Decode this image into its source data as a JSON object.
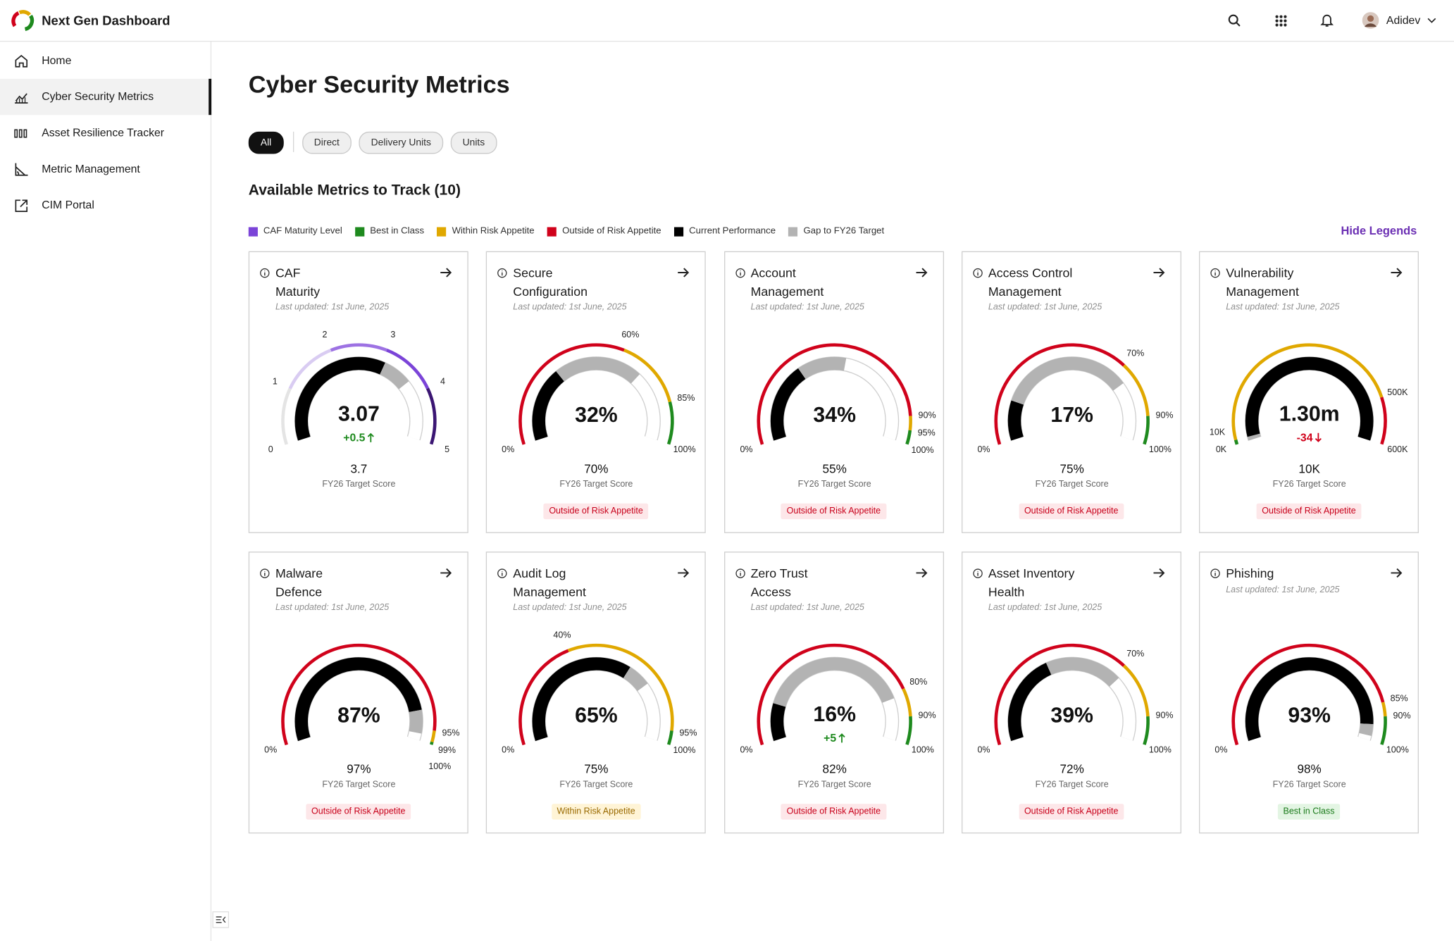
{
  "header": {
    "title": "Next Gen Dashboard",
    "user": "Adidev"
  },
  "sidebar": {
    "items": [
      "Home",
      "Cyber Security Metrics",
      "Asset Resilience Tracker",
      "Metric Management",
      "CIM Portal"
    ],
    "active": 1
  },
  "page": {
    "title": "Cyber Security Metrics",
    "filters": [
      "All",
      "Direct",
      "Delivery Units",
      "Units"
    ],
    "active_filter": 0,
    "section_title": "Available Metrics to Track (10)",
    "hide_legends": "Hide Legends"
  },
  "legend": [
    {
      "name": "CAF Maturity Level",
      "color": "#7b44d8"
    },
    {
      "name": "Best in Class",
      "color": "#1e8a1e"
    },
    {
      "name": "Within Risk Appetite",
      "color": "#e0a800"
    },
    {
      "name": "Outside of Risk Appetite",
      "color": "#d0021b"
    },
    {
      "name": "Current Performance",
      "color": "#000000"
    },
    {
      "name": "Gap to FY26 Target",
      "color": "#b3b3b3"
    }
  ],
  "cards": [
    {
      "title_lines": [
        "CAF",
        "Maturity"
      ],
      "updated": "Last updated: 1st June, 2025",
      "gauge": {
        "type": "gauge",
        "ylim": [
          0,
          5
        ],
        "yticks": [
          0,
          1,
          2,
          3,
          4,
          5
        ],
        "band_colors": [
          "#e4e4e4",
          "#d9ccf2",
          "#9d72e3",
          "#7b44d8",
          "#3b1673"
        ],
        "value": 3.07,
        "change": {
          "value": 0.5,
          "label": "+0.5"
        },
        "target": 3.7
      },
      "target_caption": "FY26 Target Score"
    },
    {
      "title_lines": [
        "Secure",
        "Configuration"
      ],
      "updated": "Last updated: 1st June, 2025",
      "gauge": {
        "type": "gauge",
        "ylim": [
          0,
          100
        ],
        "yticks": [
          {
            "value": 0,
            "label": "0%"
          },
          {
            "value": 60,
            "label": "60%"
          },
          {
            "value": 85,
            "label": "85%"
          },
          {
            "value": 100,
            "label": "100%"
          }
        ],
        "band_colors": [
          "#d0021b",
          "#e0a800",
          "#1e8a1e"
        ],
        "value": 32,
        "value_label": "32%",
        "target": 70,
        "target_label": "70%"
      },
      "target_caption": "FY26 Target Score",
      "status": {
        "text": "Outside of Risk Appetite",
        "color": "#c8001a",
        "bg": "#fde7e9"
      }
    },
    {
      "title_lines": [
        "Account",
        "Management"
      ],
      "updated": "Last updated: 1st June, 2025",
      "gauge": {
        "type": "gauge",
        "ylim": [
          0,
          100
        ],
        "yticks": [
          {
            "value": 0,
            "label": "0%"
          },
          {
            "value": 90,
            "label": "90%"
          },
          {
            "value": 95,
            "label": "95%"
          },
          {
            "value": 100,
            "label": "100%"
          }
        ],
        "band_colors": [
          "#d0021b",
          "#e0a800",
          "#1e8a1e"
        ],
        "value": 34,
        "value_label": "34%",
        "target": 55,
        "target_label": "55%"
      },
      "target_caption": "FY26 Target Score",
      "status": {
        "text": "Outside of Risk Appetite",
        "color": "#c8001a",
        "bg": "#fde7e9"
      }
    },
    {
      "title_lines": [
        "Access Control",
        "Management"
      ],
      "updated": "Last updated: 1st June, 2025",
      "gauge": {
        "type": "gauge",
        "ylim": [
          0,
          100
        ],
        "yticks": [
          {
            "value": 0,
            "label": "0%"
          },
          {
            "value": 70,
            "label": "70%"
          },
          {
            "value": 90,
            "label": "90%"
          },
          {
            "value": 100,
            "label": "100%"
          }
        ],
        "band_colors": [
          "#d0021b",
          "#e0a800",
          "#1e8a1e"
        ],
        "value": 17,
        "value_label": "17%",
        "target": 75,
        "target_label": "75%"
      },
      "target_caption": "FY26 Target Score",
      "status": {
        "text": "Outside of Risk Appetite",
        "color": "#c8001a",
        "bg": "#fde7e9"
      }
    },
    {
      "title_lines": [
        "Vulnerability",
        "Management"
      ],
      "updated": "Last updated: 1st June, 2025",
      "gauge": {
        "type": "gauge",
        "lower_is_better": true,
        "ylim": [
          0,
          600000
        ],
        "yticks": [
          {
            "value": 0,
            "label": "0K"
          },
          {
            "value": 10000,
            "label": "10K"
          },
          {
            "value": 500000,
            "label": "500K"
          },
          {
            "value": 600000,
            "label": "600K"
          }
        ],
        "band_colors": [
          "#1e8a1e",
          "#e0a800",
          "#d0021b"
        ],
        "value": 1300000,
        "value_label": "1.30m",
        "change": -34,
        "target": 10000,
        "target_label": "10K"
      },
      "target_caption": "FY26 Target Score",
      "status": {
        "text": "Outside of Risk Appetite",
        "color": "#c8001a",
        "bg": "#fde7e9"
      }
    },
    {
      "title_lines": [
        "Malware",
        "Defence"
      ],
      "updated": "Last updated: 1st June, 2025",
      "gauge": {
        "type": "gauge",
        "ylim": [
          0,
          100
        ],
        "yticks": [
          {
            "value": 0,
            "label": "0%"
          },
          {
            "value": 95,
            "label": "95%"
          },
          {
            "value": 99,
            "label": "99%"
          },
          {
            "value": 100,
            "label": "100%"
          }
        ],
        "band_colors": [
          "#d0021b",
          "#e0a800",
          "#1e8a1e"
        ],
        "value": 87,
        "value_label": "87%",
        "target": 97,
        "target_label": "97%"
      },
      "target_caption": "FY26 Target Score",
      "status": {
        "text": "Outside of Risk Appetite",
        "color": "#c8001a",
        "bg": "#fde7e9"
      }
    },
    {
      "title_lines": [
        "Audit Log",
        "Management"
      ],
      "updated": "Last updated: 1st June, 2025",
      "gauge": {
        "type": "gauge",
        "ylim": [
          0,
          100
        ],
        "yticks": [
          {
            "value": 0,
            "label": "0%"
          },
          {
            "value": 40,
            "label": "40%"
          },
          {
            "value": 95,
            "label": "95%"
          },
          {
            "value": 100,
            "label": "100%"
          }
        ],
        "band_colors": [
          "#d0021b",
          "#e0a800",
          "#1e8a1e"
        ],
        "value": 65,
        "value_label": "65%",
        "target": 75,
        "target_label": "75%"
      },
      "target_caption": "FY26 Target Score",
      "status": {
        "text": "Within Risk Appetite",
        "color": "#9a6a00",
        "bg": "#fff4d6"
      }
    },
    {
      "title_lines": [
        "Zero Trust",
        "Access"
      ],
      "updated": "Last updated: 1st June, 2025",
      "gauge": {
        "type": "gauge",
        "ylim": [
          0,
          100
        ],
        "yticks": [
          {
            "value": 0,
            "label": "0%"
          },
          {
            "value": 80,
            "label": "80%"
          },
          {
            "value": 90,
            "label": "90%"
          },
          {
            "value": 100,
            "label": "100%"
          }
        ],
        "band_colors": [
          "#d0021b",
          "#e0a800",
          "#1e8a1e"
        ],
        "value": 16,
        "value_label": "16%",
        "change": {
          "value": 5,
          "label": "+5"
        },
        "target": 82,
        "target_label": "82%"
      },
      "target_caption": "FY26 Target Score",
      "status": {
        "text": "Outside of Risk Appetite",
        "color": "#c8001a",
        "bg": "#fde7e9"
      }
    },
    {
      "title_lines": [
        "Asset Inventory",
        "Health"
      ],
      "updated": "Last updated: 1st June, 2025",
      "gauge": {
        "type": "gauge",
        "ylim": [
          0,
          100
        ],
        "yticks": [
          {
            "value": 0,
            "label": "0%"
          },
          {
            "value": 70,
            "label": "70%"
          },
          {
            "value": 90,
            "label": "90%"
          },
          {
            "value": 100,
            "label": "100%"
          }
        ],
        "band_colors": [
          "#d0021b",
          "#e0a800",
          "#1e8a1e"
        ],
        "value": 39,
        "value_label": "39%",
        "target": 72,
        "target_label": "72%"
      },
      "target_caption": "FY26 Target Score",
      "status": {
        "text": "Outside of Risk Appetite",
        "color": "#c8001a",
        "bg": "#fde7e9"
      }
    },
    {
      "title_lines": [
        "Phishing"
      ],
      "updated": "Last updated: 1st June, 2025",
      "gauge": {
        "type": "gauge",
        "ylim": [
          0,
          100
        ],
        "yticks": [
          {
            "value": 0,
            "label": "0%"
          },
          {
            "value": 85,
            "label": "85%"
          },
          {
            "value": 90,
            "label": "90%"
          },
          {
            "value": 100,
            "label": "100%"
          }
        ],
        "band_colors": [
          "#d0021b",
          "#e0a800",
          "#1e8a1e"
        ],
        "value": 93,
        "value_label": "93%",
        "target": 98,
        "target_label": "98%"
      },
      "target_caption": "FY26 Target Score",
      "status": {
        "text": "Best in Class",
        "color": "#1a7a1a",
        "bg": "#e3f5e3"
      }
    }
  ]
}
